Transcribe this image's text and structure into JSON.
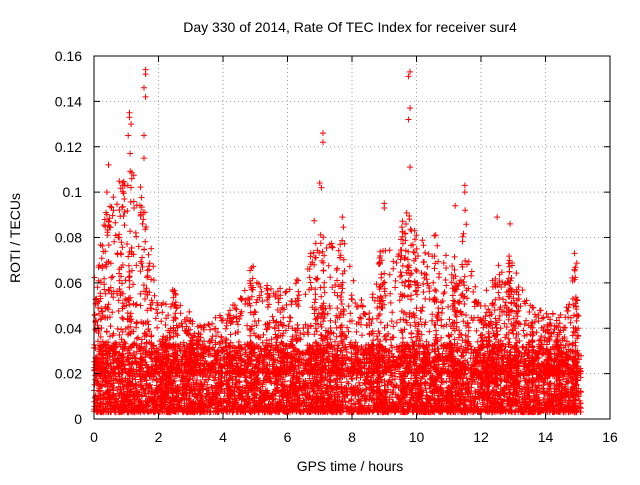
{
  "chart_data": {
    "type": "scatter",
    "title": "Day 330 of 2014, Rate Of TEC Index for receiver sur4",
    "xlabel": "GPS time / hours",
    "ylabel": "ROTI / TECUs",
    "xlim": [
      0,
      16
    ],
    "ylim": [
      0,
      0.16
    ],
    "x_ticks": [
      0,
      2,
      4,
      6,
      8,
      10,
      12,
      14,
      16
    ],
    "x_tick_labels": [
      "0",
      "2",
      "4",
      "6",
      "8",
      "10",
      "12",
      "14",
      "16"
    ],
    "y_ticks": [
      0,
      0.02,
      0.04,
      0.06,
      0.08,
      0.1,
      0.12,
      0.14,
      0.16
    ],
    "y_tick_labels": [
      "0",
      "0.02",
      "0.04",
      "0.06",
      "0.08",
      "0.1",
      "0.12",
      "0.14",
      "0.16"
    ],
    "grid": true,
    "marker": "+",
    "marker_color": "#ff0000",
    "series": [
      {
        "name": "sur4",
        "x_range": [
          0,
          15.1
        ],
        "baseline_band": [
          0.002,
          0.03
        ],
        "notable_points": [
          {
            "x": 1.6,
            "y": 0.154
          },
          {
            "x": 1.6,
            "y": 0.152
          },
          {
            "x": 1.55,
            "y": 0.146
          },
          {
            "x": 1.6,
            "y": 0.142
          },
          {
            "x": 1.1,
            "y": 0.135
          },
          {
            "x": 1.1,
            "y": 0.133
          },
          {
            "x": 1.15,
            "y": 0.13
          },
          {
            "x": 1.55,
            "y": 0.125
          },
          {
            "x": 1.55,
            "y": 0.115
          },
          {
            "x": 0.45,
            "y": 0.112
          },
          {
            "x": 0.4,
            "y": 0.1
          },
          {
            "x": 0.35,
            "y": 0.085
          },
          {
            "x": 7.1,
            "y": 0.126
          },
          {
            "x": 7.1,
            "y": 0.122
          },
          {
            "x": 7.0,
            "y": 0.104
          },
          {
            "x": 7.05,
            "y": 0.102
          },
          {
            "x": 7.7,
            "y": 0.089
          },
          {
            "x": 9.8,
            "y": 0.153
          },
          {
            "x": 9.75,
            "y": 0.151
          },
          {
            "x": 9.8,
            "y": 0.137
          },
          {
            "x": 9.75,
            "y": 0.132
          },
          {
            "x": 9.8,
            "y": 0.111
          },
          {
            "x": 9.0,
            "y": 0.095
          },
          {
            "x": 9.0,
            "y": 0.093
          },
          {
            "x": 11.5,
            "y": 0.103
          },
          {
            "x": 11.5,
            "y": 0.1
          },
          {
            "x": 11.2,
            "y": 0.094
          },
          {
            "x": 12.5,
            "y": 0.089
          },
          {
            "x": 12.9,
            "y": 0.086
          },
          {
            "x": 14.9,
            "y": 0.073
          }
        ]
      }
    ]
  }
}
